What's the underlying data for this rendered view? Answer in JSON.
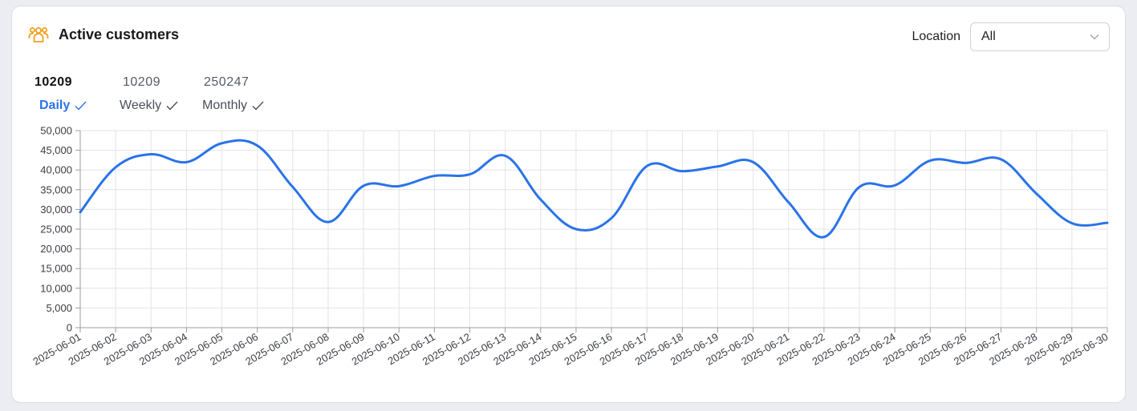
{
  "header": {
    "title": "Active customers",
    "icon": "users-group-icon"
  },
  "filter": {
    "label": "Location",
    "selected": "All"
  },
  "tabs": [
    {
      "count": "10209",
      "label": "Daily",
      "active": true
    },
    {
      "count": "10209",
      "label": "Weekly",
      "active": false
    },
    {
      "count": "250247",
      "label": "Monthly",
      "active": false
    }
  ],
  "colors": {
    "line": "#2a73e8",
    "accent": "#f0a020",
    "active_tab": "#2a73e8"
  },
  "chart_data": {
    "type": "line",
    "title": "",
    "xlabel": "",
    "ylabel": "",
    "ylim": [
      0,
      50000
    ],
    "yticks": [
      "0",
      "5,000",
      "10,000",
      "15,000",
      "20,000",
      "25,000",
      "30,000",
      "35,000",
      "40,000",
      "45,000",
      "50,000"
    ],
    "grid": true,
    "x": [
      "2025-06-01",
      "2025-06-02",
      "2025-06-03",
      "2025-06-04",
      "2025-06-05",
      "2025-06-06",
      "2025-06-07",
      "2025-06-08",
      "2025-06-09",
      "2025-06-10",
      "2025-06-11",
      "2025-06-12",
      "2025-06-13",
      "2025-06-14",
      "2025-06-15",
      "2025-06-16",
      "2025-06-17",
      "2025-06-18",
      "2025-06-19",
      "2025-06-20",
      "2025-06-21",
      "2025-06-22",
      "2025-06-23",
      "2025-06-24",
      "2025-06-25",
      "2025-06-26",
      "2025-06-27",
      "2025-06-28",
      "2025-06-29",
      "2025-06-30"
    ],
    "series": [
      {
        "values": [
          29300,
          40700,
          44000,
          42000,
          46800,
          46200,
          35700,
          26800,
          36000,
          35900,
          38500,
          38900,
          43600,
          32500,
          25000,
          27800,
          41000,
          39700,
          40900,
          42000,
          31800,
          23000,
          35700,
          36100,
          42400,
          41800,
          42700,
          34000,
          26500,
          26600
        ]
      }
    ]
  }
}
